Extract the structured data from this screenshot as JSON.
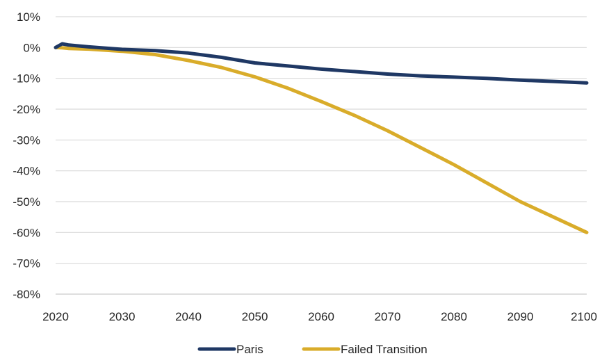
{
  "chart_data": {
    "type": "line",
    "title": "",
    "xlabel": "",
    "ylabel": "",
    "xlim": [
      2020,
      2100
    ],
    "ylim": [
      -80,
      10
    ],
    "x_ticks": [
      "2020",
      "2030",
      "2040",
      "2050",
      "2060",
      "2070",
      "2080",
      "2090",
      "2100"
    ],
    "y_ticks": [
      "10%",
      "0%",
      "-10%",
      "-20%",
      "-30%",
      "-40%",
      "-50%",
      "-60%",
      "-70%",
      "-80%"
    ],
    "grid": "horizontal",
    "legend_position": "bottom",
    "x": [
      2020,
      2021,
      2022,
      2025,
      2030,
      2035,
      2040,
      2045,
      2050,
      2055,
      2060,
      2065,
      2070,
      2075,
      2080,
      2085,
      2090,
      2095,
      2100
    ],
    "series": [
      {
        "name": "Paris",
        "color": "#1f3864",
        "values": [
          0,
          1.2,
          0.8,
          0.2,
          -0.6,
          -1.0,
          -1.8,
          -3.2,
          -5.0,
          -6.0,
          -7.0,
          -7.8,
          -8.6,
          -9.2,
          -9.6,
          -10.0,
          -10.6,
          -11.0,
          -11.5
        ]
      },
      {
        "name": "Failed Transition",
        "color": "#d9ac2a",
        "values": [
          0,
          -0.1,
          -0.3,
          -0.5,
          -1.2,
          -2.3,
          -4.2,
          -6.5,
          -9.5,
          -13.2,
          -17.5,
          -22.0,
          -27.0,
          -32.5,
          -38.0,
          -44.0,
          -50.0,
          -55.0,
          -60.0
        ]
      }
    ]
  }
}
